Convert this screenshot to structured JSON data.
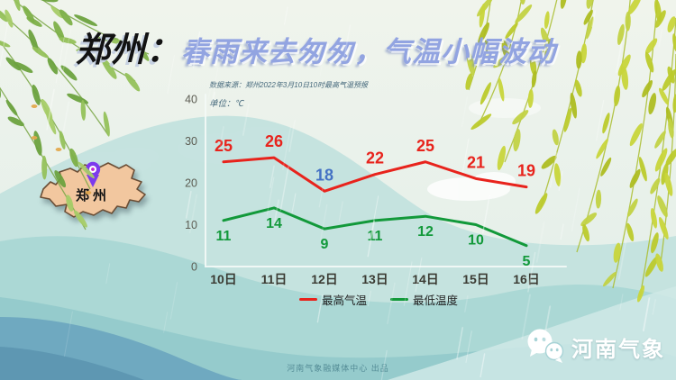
{
  "title": {
    "prefix": "郑州：",
    "main": "春雨来去匆匆，气温小幅波动"
  },
  "map": {
    "label": "郑州",
    "pin_icon": "location-pin-icon"
  },
  "chart_data": {
    "type": "line",
    "source": "数据来源：郑州2022年3月10日10时最高气温预报",
    "unit": "单位：℃",
    "categories": [
      "10日",
      "11日",
      "12日",
      "13日",
      "14日",
      "15日",
      "16日"
    ],
    "series": [
      {
        "name": "最高气温",
        "color": "#e8231c",
        "values": [
          25,
          26,
          18,
          22,
          25,
          21,
          19
        ],
        "label_colors": [
          "#e8231c",
          "#e8231c",
          "#4472c4",
          "#e8231c",
          "#e8231c",
          "#e8231c",
          "#e8231c"
        ]
      },
      {
        "name": "最低温度",
        "color": "#12993a",
        "values": [
          11,
          14,
          9,
          11,
          12,
          10,
          5
        ]
      }
    ],
    "ylim": [
      0,
      40
    ],
    "yticks": [
      0,
      10,
      20,
      30,
      40
    ],
    "grid": false,
    "legend_position": "bottom"
  },
  "footer": {
    "credit": "河南气象融媒体中心  出品"
  },
  "brand": {
    "name": "河南气象",
    "icon": "wechat-icon"
  },
  "colors": {
    "max_line": "#e8231c",
    "min_line": "#12993a",
    "highlight_label": "#4472c4",
    "title_accent": "#92a4e1",
    "map_fill": "#f2c79f"
  }
}
